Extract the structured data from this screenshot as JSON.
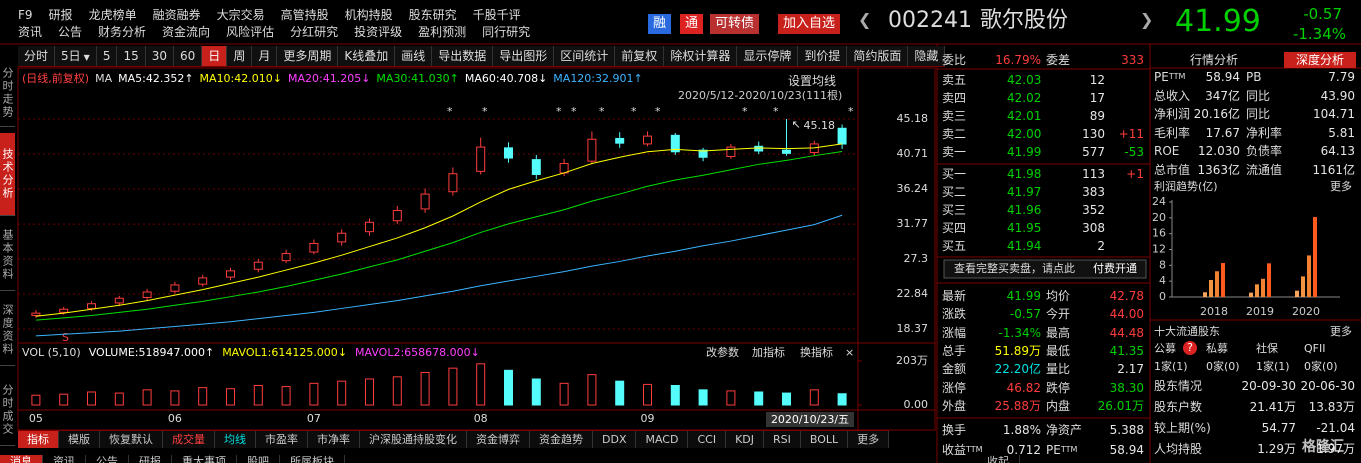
{
  "menu": {
    "row1": [
      "F9",
      "研报",
      "龙虎榜单",
      "融资融券",
      "大宗交易",
      "高管持股",
      "机构持股",
      "股东研究",
      "千股千评"
    ],
    "row2": [
      "资讯",
      "公告",
      "财务分析",
      "资金流向",
      "风险评估",
      "分红研究",
      "投资评级",
      "盈利预测",
      "同行研究"
    ]
  },
  "badges": [
    "融",
    "通",
    "可转债",
    "加入自选"
  ],
  "stock": {
    "code": "002241",
    "name": "歌尔股份",
    "price": "41.99",
    "change": "-0.57",
    "change_pct": "-1.34%"
  },
  "toolbar": [
    "分时",
    "5日",
    "5",
    "15",
    "30",
    "60",
    "日",
    "周",
    "月",
    "更多周期",
    "K线叠加",
    "画线",
    "导出数据",
    "导出图形",
    "区间统计",
    "前复权",
    "除权计算器",
    "显示停牌",
    "到价提",
    "简约版面",
    "隐藏"
  ],
  "side_tabs": [
    "分时走势",
    "技术分析",
    "基本资料",
    "深度资料",
    "分时成交"
  ],
  "chart": {
    "type": "candlestick",
    "mode": "(日线,前复权)",
    "ma_title": "MA",
    "ma_legend": [
      {
        "text": "MA5:42.352",
        "arrow": "↑",
        "color": "#ffffff"
      },
      {
        "text": "MA10:42.010",
        "arrow": "↓",
        "color": "#ffff00"
      },
      {
        "text": "MA20:41.205",
        "arrow": "↓",
        "color": "#ff40ff"
      },
      {
        "text": "MA30:41.030",
        "arrow": "↑",
        "color": "#00e000"
      },
      {
        "text": "MA60:40.708",
        "arrow": "↓",
        "color": "#ffffff"
      },
      {
        "text": "MA120:32.901",
        "arrow": "↑",
        "color": "#3cb4ff"
      }
    ],
    "settings": "设置均线",
    "range": "2020/5/12-2020/10/23(111根)",
    "categories": [
      "05",
      null,
      null,
      null,
      null,
      "06",
      null,
      null,
      null,
      null,
      "07",
      null,
      null,
      null,
      null,
      null,
      "08",
      null,
      null,
      null,
      null,
      null,
      "09",
      null,
      null,
      null,
      null,
      null,
      null,
      null
    ],
    "open": [
      20.1,
      20.5,
      21.0,
      21.7,
      22.4,
      23.2,
      24.1,
      25.0,
      26.0,
      27.1,
      28.2,
      29.5,
      30.8,
      32.2,
      33.7,
      35.9,
      38.5,
      41.5,
      40.0,
      38.3,
      39.8,
      42.7,
      42.0,
      43.1,
      41.2,
      40.4,
      41.7,
      41.2,
      40.9,
      44.0
    ],
    "high": [
      20.8,
      21.2,
      21.9,
      22.6,
      23.5,
      24.4,
      25.3,
      26.2,
      27.3,
      28.5,
      29.8,
      31.1,
      32.5,
      34.1,
      36.3,
      39.0,
      42.8,
      42.2,
      40.6,
      40.1,
      43.6,
      43.5,
      43.6,
      43.4,
      41.5,
      42.0,
      42.3,
      45.18,
      42.4,
      44.48
    ],
    "low": [
      19.8,
      20.2,
      20.7,
      21.3,
      22.0,
      22.9,
      23.8,
      24.6,
      25.6,
      26.8,
      27.9,
      29.0,
      30.3,
      31.8,
      33.2,
      35.4,
      38.1,
      39.6,
      37.5,
      37.9,
      39.5,
      41.5,
      41.7,
      40.6,
      39.8,
      40.1,
      40.7,
      40.5,
      40.5,
      41.35
    ],
    "close": [
      20.4,
      20.9,
      21.6,
      22.3,
      23.1,
      24.0,
      24.9,
      25.8,
      26.9,
      28.0,
      29.3,
      30.6,
      32.0,
      33.5,
      35.6,
      38.2,
      41.6,
      40.2,
      38.1,
      39.5,
      42.6,
      42.1,
      43.0,
      41.0,
      40.3,
      41.6,
      41.1,
      40.8,
      42.0,
      41.99
    ],
    "ma": [
      {
        "color": "#ffff00",
        "values": [
          20.0,
          20.4,
          20.9,
          21.4,
          22.0,
          22.7,
          23.4,
          24.2,
          25.0,
          25.9,
          26.8,
          27.8,
          28.9,
          30.0,
          31.3,
          32.8,
          34.6,
          36.2,
          37.3,
          38.3,
          39.5,
          40.3,
          41.0,
          41.3,
          41.1,
          41.3,
          41.5,
          41.4,
          41.5,
          42.01
        ]
      },
      {
        "color": "#00e000",
        "values": [
          19.5,
          19.8,
          20.1,
          20.5,
          20.9,
          21.4,
          21.9,
          22.5,
          23.1,
          23.8,
          24.6,
          25.4,
          26.3,
          27.2,
          28.3,
          29.4,
          30.7,
          31.8,
          32.7,
          33.6,
          34.7,
          35.6,
          36.6,
          37.4,
          38.0,
          38.7,
          39.4,
          39.9,
          40.5,
          41.03
        ]
      },
      {
        "color": "#3cb4ff",
        "values": [
          17.5,
          17.7,
          17.9,
          18.1,
          18.4,
          18.7,
          19.0,
          19.3,
          19.7,
          20.1,
          20.5,
          21.0,
          21.5,
          22.0,
          22.6,
          23.2,
          23.9,
          24.5,
          25.1,
          25.7,
          26.4,
          27.0,
          27.7,
          28.3,
          29.0,
          29.6,
          30.3,
          31.0,
          31.7,
          32.901
        ]
      }
    ],
    "ylim": [
      16.97,
      47.61
    ],
    "yticks": [
      45.18,
      40.71,
      36.24,
      31.77,
      27.3,
      22.84,
      18.37
    ],
    "grid": true,
    "date_label": "2020/10/23/五"
  },
  "volume": {
    "type": "bar",
    "title": "VOL (5,10)",
    "legend": [
      {
        "text": "VOLUME:518947.000",
        "arrow": "↑",
        "color": "#ffffff"
      },
      {
        "text": "MAVOL1:614125.000",
        "arrow": "↓",
        "color": "#ffff00"
      },
      {
        "text": "MAVOL2:658678.000",
        "arrow": "↓",
        "color": "#ff40ff"
      }
    ],
    "buttons": [
      "改参数",
      "加指标",
      "换指标",
      "×"
    ],
    "values": [
      45,
      50,
      60,
      55,
      70,
      65,
      80,
      75,
      90,
      85,
      100,
      110,
      120,
      130,
      150,
      170,
      190,
      160,
      120,
      100,
      140,
      110,
      95,
      90,
      70,
      65,
      60,
      55,
      70,
      51.89
    ],
    "ylim": [
      0,
      203
    ],
    "yticks": [
      {
        "value": 203,
        "label": "203万"
      },
      {
        "value": 0,
        "label": "0.00"
      }
    ]
  },
  "indicator_tabs": [
    "指标",
    "模版",
    "恢复默认",
    "成交量",
    "均线",
    "市盈率",
    "市净率",
    "沪深股通持股变化",
    "资金博弈",
    "资金趋势",
    "DDX",
    "MACD",
    "CCI",
    "KDJ",
    "RSI",
    "BOLL",
    "更多"
  ],
  "bottom_tabs": [
    "消息",
    "资讯",
    "公告",
    "研报",
    "重大事项",
    "股吧",
    "所属板块",
    "收起"
  ],
  "quote": {
    "ratio_label": "委比",
    "ratio": "16.79%",
    "diff_label": "委差",
    "diff": "333",
    "asks": [
      {
        "label": "卖五",
        "price": "42.03",
        "volume": "12"
      },
      {
        "label": "卖四",
        "price": "42.02",
        "volume": "17"
      },
      {
        "label": "卖三",
        "price": "42.01",
        "volume": "89"
      },
      {
        "label": "卖二",
        "price": "42.00",
        "volume": "130",
        "change": "+11"
      },
      {
        "label": "卖一",
        "price": "41.99",
        "volume": "577",
        "change": "-53"
      }
    ],
    "bids": [
      {
        "label": "买一",
        "price": "41.98",
        "volume": "113",
        "change": "+1"
      },
      {
        "label": "买二",
        "price": "41.97",
        "volume": "383"
      },
      {
        "label": "买三",
        "price": "41.96",
        "volume": "352"
      },
      {
        "label": "买四",
        "price": "41.95",
        "volume": "308"
      },
      {
        "label": "买五",
        "price": "41.94",
        "volume": "2"
      }
    ],
    "notice": "查看完整买卖盘，请点此",
    "notice_button": "付费开通",
    "stats": [
      [
        {
          "label": "最新",
          "value": "41.99",
          "tone": "down"
        },
        {
          "label": "均价",
          "value": "42.78",
          "tone": "up"
        }
      ],
      [
        {
          "label": "涨跌",
          "value": "-0.57",
          "tone": "down"
        },
        {
          "label": "今开",
          "value": "44.00",
          "tone": "up"
        }
      ],
      [
        {
          "label": "涨幅",
          "value": "-1.34%",
          "tone": "down"
        },
        {
          "label": "最高",
          "value": "44.48",
          "tone": "up"
        }
      ],
      [
        {
          "label": "总手",
          "value": "51.89万",
          "tone": "vol"
        },
        {
          "label": "最低",
          "value": "41.35",
          "tone": "down"
        }
      ],
      [
        {
          "label": "金额",
          "value": "22.20亿",
          "tone": "amount"
        },
        {
          "label": "量比",
          "value": "2.17",
          "tone": "flat"
        }
      ],
      [
        {
          "label": "涨停",
          "value": "46.82",
          "tone": "up"
        },
        {
          "label": "跌停",
          "value": "38.30",
          "tone": "down"
        }
      ],
      [
        {
          "label": "外盘",
          "value": "25.88万",
          "tone": "up"
        },
        {
          "label": "内盘",
          "value": "26.01万",
          "tone": "down"
        }
      ]
    ],
    "extra": [
      [
        {
          "label": "换手",
          "value": "1.88%",
          "tone": "flat"
        },
        {
          "label": "净资产",
          "value": "5.388",
          "tone": "flat"
        }
      ],
      [
        {
          "label": "收益",
          "sup": "TTM",
          "value": "0.712",
          "tone": "flat"
        },
        {
          "label": "PE",
          "sup": "TTM",
          "value": "58.94",
          "tone": "flat"
        }
      ]
    ]
  },
  "analysis": {
    "tabs": [
      "行情分析",
      "深度分析"
    ],
    "rows": [
      [
        {
          "label": "PE",
          "sup": "TTM",
          "value": "58.94"
        },
        {
          "label": "PB",
          "value": "7.79"
        }
      ],
      [
        {
          "label": "总收入",
          "value": "347亿"
        },
        {
          "label": "同比",
          "value": "43.90"
        }
      ],
      [
        {
          "label": "净利润",
          "value": "20.16亿"
        },
        {
          "label": "同比",
          "value": "104.71"
        }
      ],
      [
        {
          "label": "毛利率",
          "value": "17.67"
        },
        {
          "label": "净利率",
          "value": "5.81"
        }
      ],
      [
        {
          "label": "ROE",
          "value": "12.030"
        },
        {
          "label": "负债率",
          "value": "64.13"
        }
      ],
      [
        {
          "label": "总市值",
          "value": "1363亿"
        },
        {
          "label": "流通值",
          "value": "1161亿"
        }
      ]
    ]
  },
  "profit": {
    "type": "grouped-bar",
    "title": "利润趋势(亿)",
    "more": "更多",
    "categories": [
      "2018",
      "2019",
      "2020"
    ],
    "values": [
      [
        1.2,
        4.3,
        6.5,
        8.6
      ],
      [
        1.1,
        3.2,
        4.6,
        8.5
      ],
      [
        1.6,
        5.2,
        10.5,
        20.2
      ]
    ],
    "colors": [
      "#f7a35c",
      "#f59440",
      "#f38230",
      "#ff5a1e"
    ],
    "ylim": [
      0,
      24
    ],
    "yticks": [
      0,
      4,
      8,
      12,
      16,
      20,
      24
    ]
  },
  "holders": {
    "title": "十大流通股东",
    "more": "更多",
    "types": [
      "公募",
      "私募",
      "社保",
      "QFII"
    ],
    "help": "?",
    "counts": [
      "1家(1)",
      "0家(0)",
      "1家(1)",
      "0家(0)"
    ],
    "rows": [
      [
        "股东情况",
        "20-09-30",
        "20-06-30"
      ],
      [
        "股东户数",
        "21.41万",
        "13.83万"
      ],
      [
        "较上期(%)",
        "54.77",
        "-21.04"
      ],
      [
        "人均持股",
        "1.29万",
        "1.97万"
      ]
    ]
  },
  "watermark": "格隆汇"
}
